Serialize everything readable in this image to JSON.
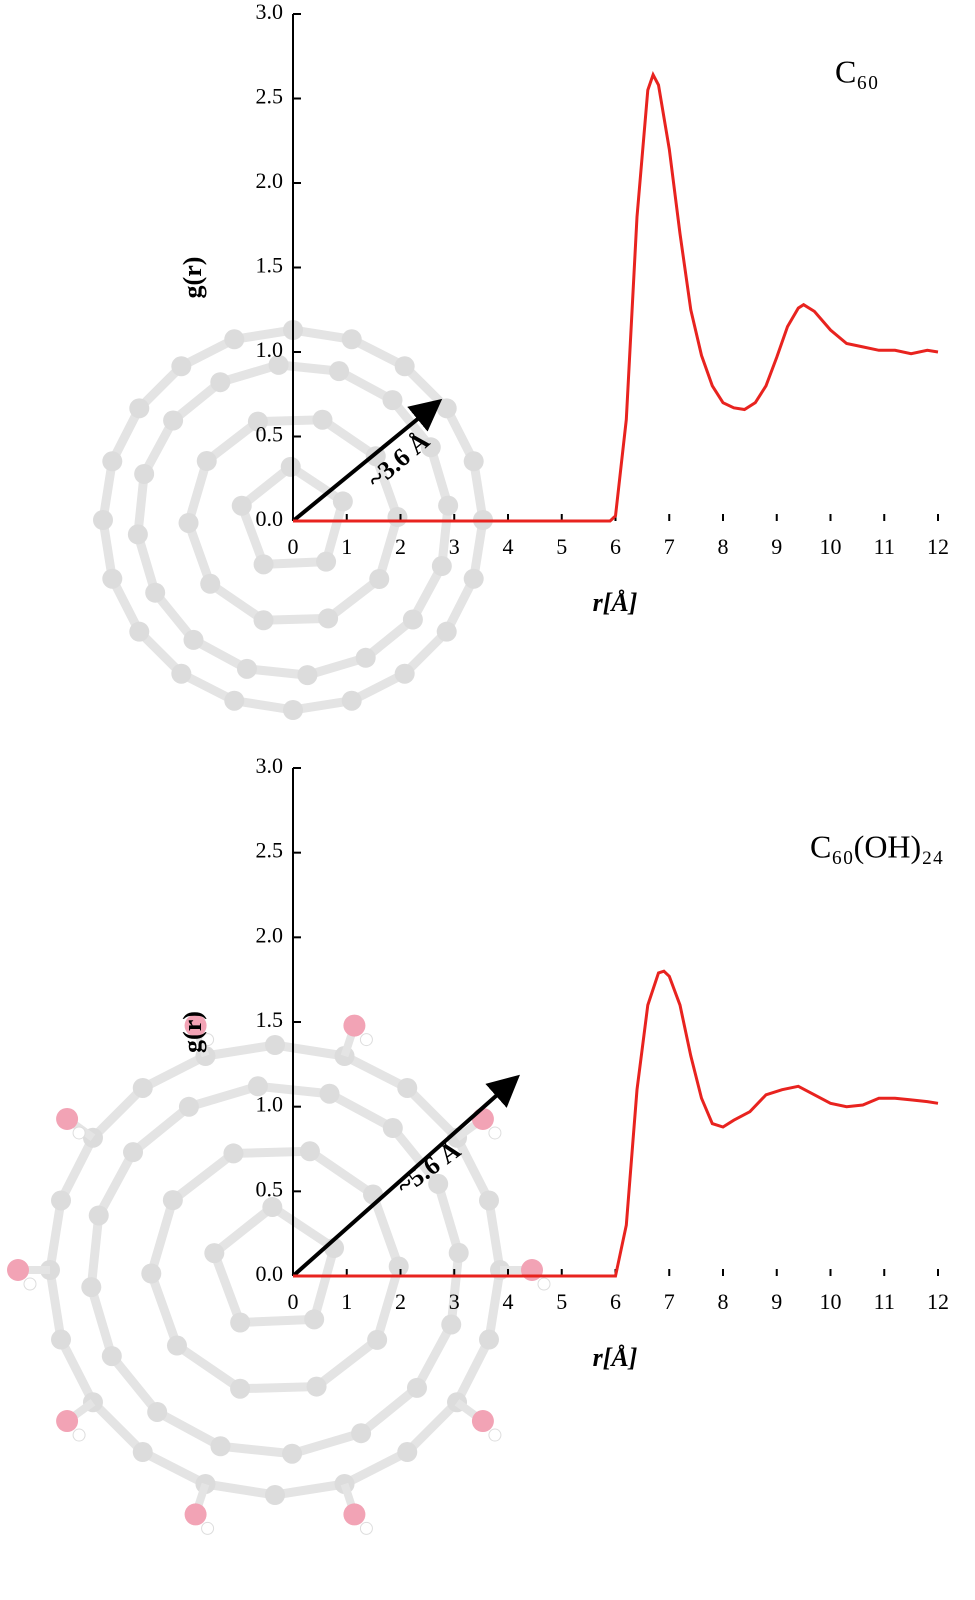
{
  "chart_data": [
    {
      "type": "line",
      "annotation": "C₆₀",
      "arrow_label": "~3.6 Å",
      "xlabel": "r[Å]",
      "ylabel": "g(r)",
      "xlim": [
        0,
        12
      ],
      "ylim": [
        0,
        3
      ],
      "xticks": [
        0,
        1,
        2,
        3,
        4,
        5,
        6,
        7,
        8,
        9,
        10,
        11,
        12
      ],
      "yticks": [
        {
          "value": 0,
          "label": "0.0"
        },
        0.5,
        {
          "value": 1,
          "label": "1.0"
        },
        1.5,
        {
          "value": 2,
          "label": "2.0"
        },
        2.5,
        {
          "value": 3,
          "label": "3.0"
        }
      ],
      "series": [
        {
          "color": "#e8231f",
          "x": [
            0,
            1,
            2,
            3,
            4,
            5,
            5.9,
            6.0,
            6.2,
            6.4,
            6.6,
            6.7,
            6.8,
            7.0,
            7.2,
            7.4,
            7.6,
            7.8,
            8.0,
            8.2,
            8.4,
            8.6,
            8.8,
            9.0,
            9.2,
            9.4,
            9.5,
            9.7,
            10.0,
            10.3,
            10.6,
            10.9,
            11.2,
            11.5,
            11.8,
            12
          ],
          "values": [
            0,
            0,
            0,
            0,
            0,
            0,
            0,
            0.03,
            0.6,
            1.8,
            2.55,
            2.64,
            2.58,
            2.2,
            1.7,
            1.25,
            0.98,
            0.8,
            0.7,
            0.67,
            0.66,
            0.7,
            0.8,
            0.97,
            1.15,
            1.26,
            1.28,
            1.24,
            1.13,
            1.05,
            1.03,
            1.01,
            1.01,
            0.99,
            1.01,
            1.0
          ]
        }
      ]
    },
    {
      "type": "line",
      "annotation": "C₆₀(OH)₂₄",
      "arrow_label": "~5.6 Å",
      "xlabel": "r[Å]",
      "ylabel": "g(r)",
      "xlim": [
        0,
        12
      ],
      "ylim": [
        0,
        3
      ],
      "xticks": [
        0,
        1,
        2,
        3,
        4,
        5,
        6,
        7,
        8,
        9,
        10,
        11,
        12
      ],
      "yticks": [
        {
          "value": 0,
          "label": "0.0"
        },
        0.5,
        {
          "value": 1,
          "label": "1.0"
        },
        1.5,
        {
          "value": 2,
          "label": "2.0"
        },
        2.5,
        {
          "value": 3,
          "label": "3.0"
        }
      ],
      "series": [
        {
          "color": "#e8231f",
          "x": [
            0,
            1,
            2,
            3,
            4,
            5,
            6.0,
            6.2,
            6.4,
            6.6,
            6.8,
            6.9,
            7.0,
            7.2,
            7.4,
            7.6,
            7.8,
            8.0,
            8.2,
            8.5,
            8.8,
            9.1,
            9.4,
            9.7,
            10.0,
            10.3,
            10.6,
            10.9,
            11.2,
            11.5,
            11.8,
            12
          ],
          "values": [
            0,
            0,
            0,
            0,
            0,
            0,
            0,
            0.3,
            1.1,
            1.6,
            1.79,
            1.8,
            1.77,
            1.6,
            1.3,
            1.05,
            0.9,
            0.88,
            0.92,
            0.97,
            1.07,
            1.1,
            1.12,
            1.07,
            1.02,
            1.0,
            1.01,
            1.05,
            1.05,
            1.04,
            1.03,
            1.02
          ]
        }
      ]
    }
  ]
}
